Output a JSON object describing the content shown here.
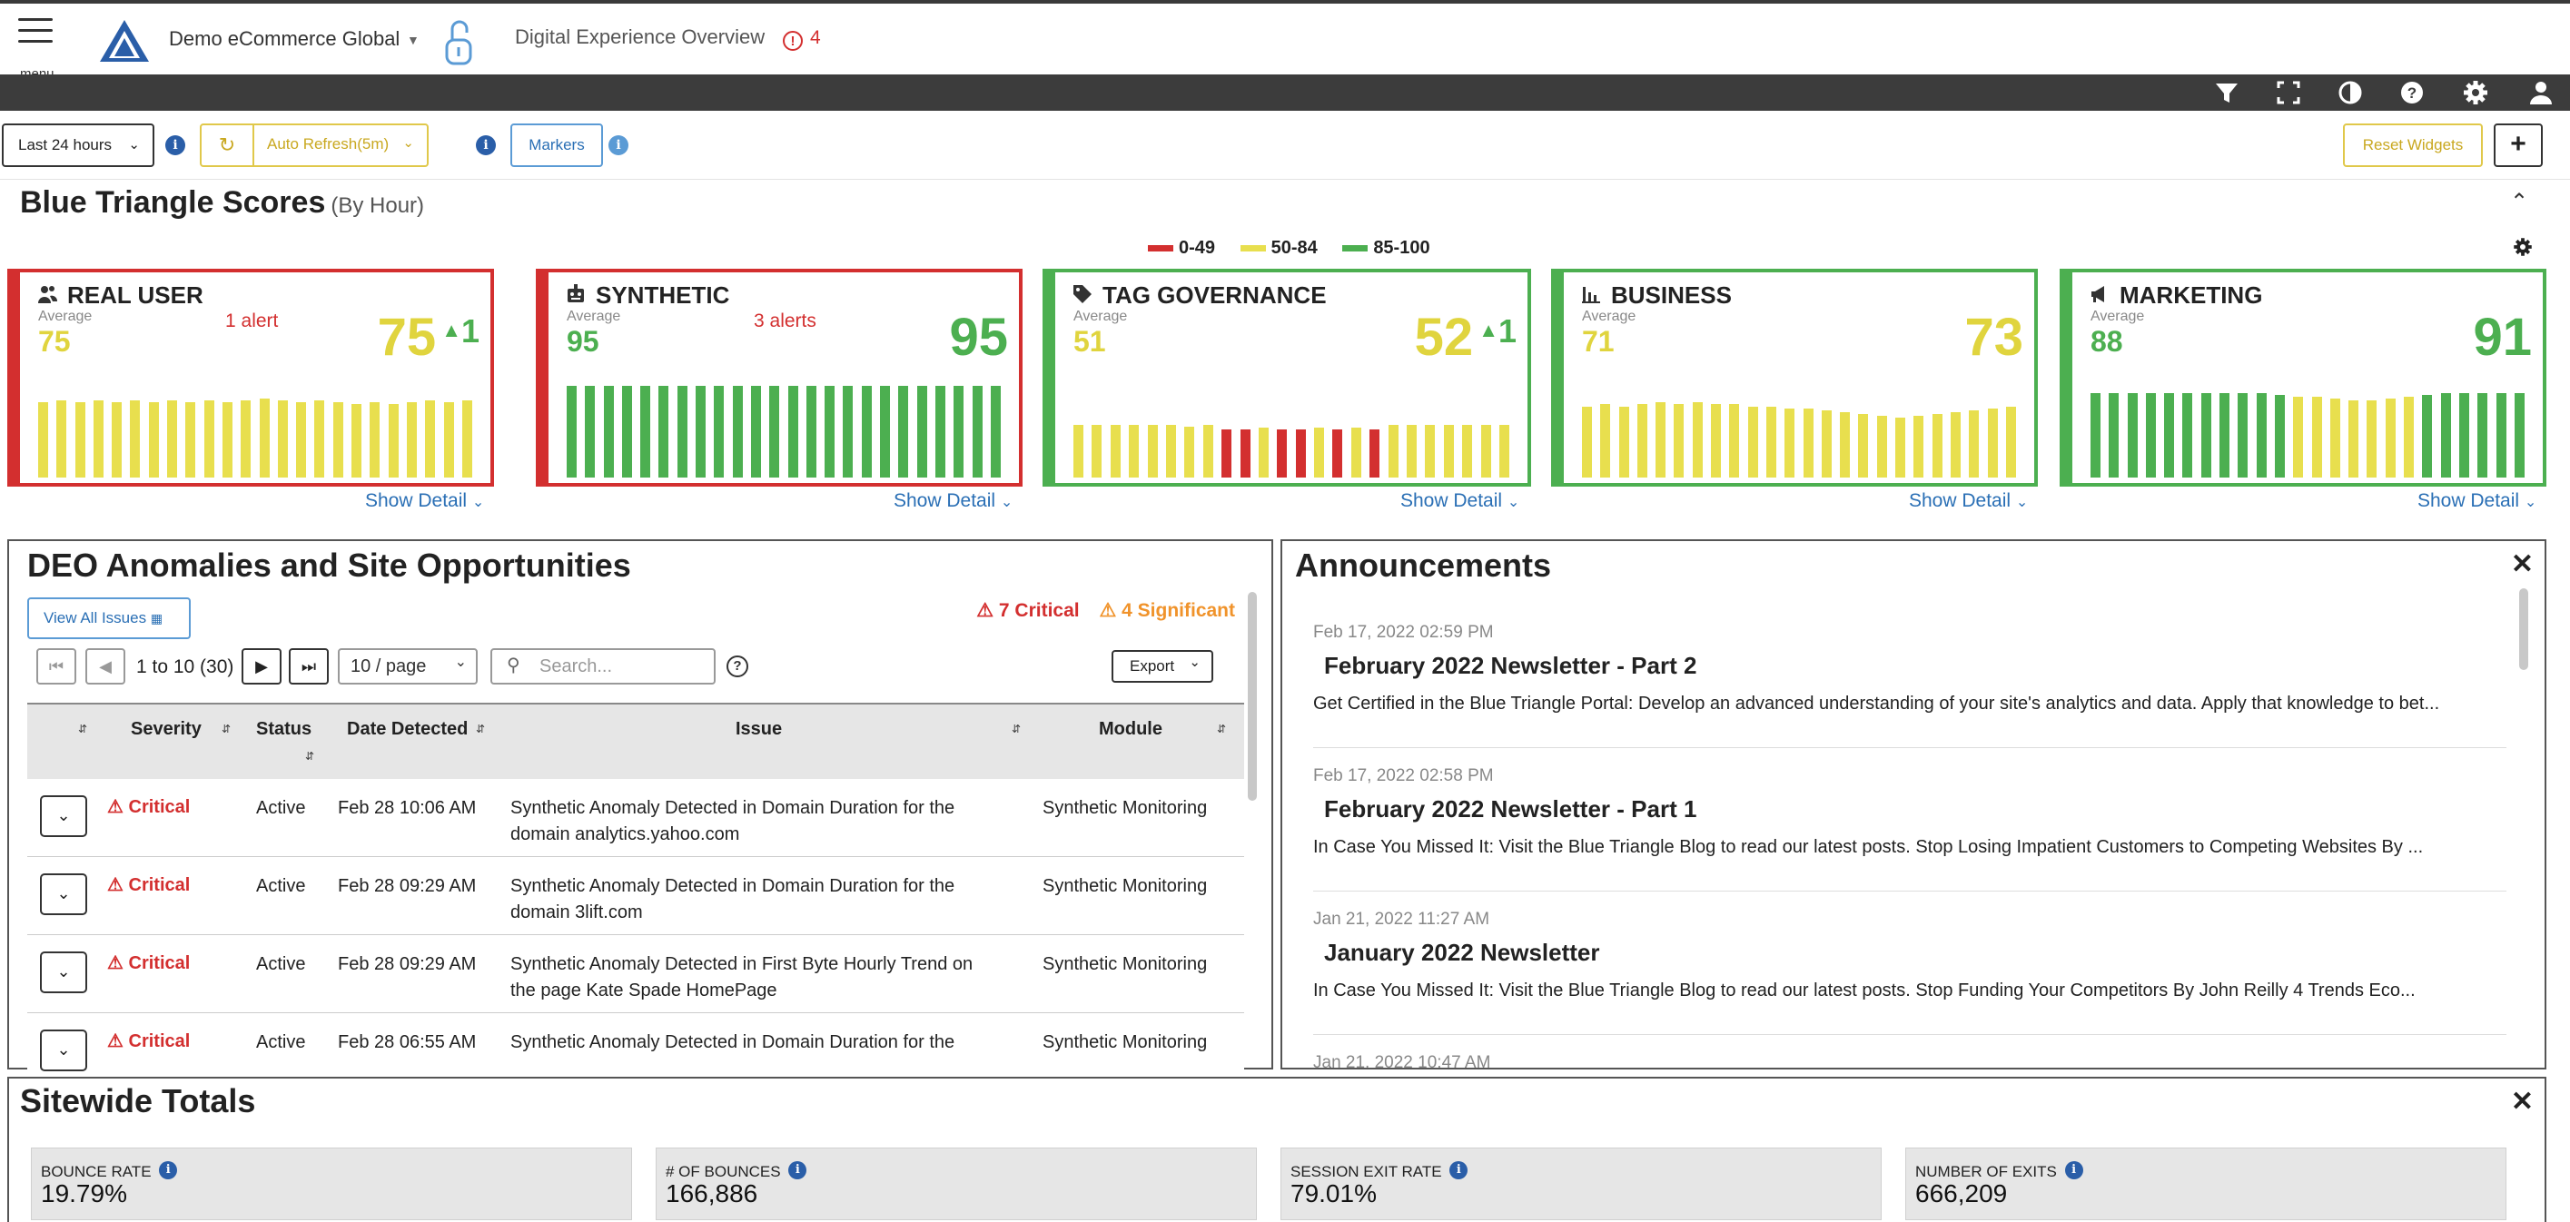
{
  "header": {
    "menu_label": "menu",
    "site_name": "Demo eCommerce Global",
    "page_name": "Digital Experience Overview",
    "alert_count": "4"
  },
  "filters": {
    "time_range": "Last 24 hours",
    "auto_refresh": "Auto Refresh(5m)",
    "markers": "Markers",
    "reset_widgets": "Reset Widgets",
    "add": "+"
  },
  "scores": {
    "title": "Blue Triangle Scores",
    "subtitle": "(By Hour)",
    "legend": [
      {
        "label": "0-49",
        "color": "#d32f2f"
      },
      {
        "label": "50-84",
        "color": "#e8df4e"
      },
      {
        "label": "85-100",
        "color": "#4caf50"
      }
    ],
    "average_label": "Average",
    "show_detail": "Show Detail",
    "cards": [
      {
        "title": "REAL USER",
        "icon": "users-icon",
        "average": "75",
        "alert": "1 alert",
        "score": "75",
        "delta": "1",
        "border": "#d32f2f",
        "avg_color": "#e0d43e",
        "score_color": "#e0d43e",
        "bars": [
          {
            "v": 0.78,
            "c": "#e8df4e"
          },
          {
            "v": 0.8,
            "c": "#e8df4e"
          },
          {
            "v": 0.78,
            "c": "#e8df4e"
          },
          {
            "v": 0.8,
            "c": "#e8df4e"
          },
          {
            "v": 0.78,
            "c": "#e8df4e"
          },
          {
            "v": 0.8,
            "c": "#e8df4e"
          },
          {
            "v": 0.78,
            "c": "#e8df4e"
          },
          {
            "v": 0.8,
            "c": "#e8df4e"
          },
          {
            "v": 0.78,
            "c": "#e8df4e"
          },
          {
            "v": 0.8,
            "c": "#e8df4e"
          },
          {
            "v": 0.78,
            "c": "#e8df4e"
          },
          {
            "v": 0.8,
            "c": "#e8df4e"
          },
          {
            "v": 0.82,
            "c": "#e8df4e"
          },
          {
            "v": 0.8,
            "c": "#e8df4e"
          },
          {
            "v": 0.78,
            "c": "#e8df4e"
          },
          {
            "v": 0.8,
            "c": "#e8df4e"
          },
          {
            "v": 0.78,
            "c": "#e8df4e"
          },
          {
            "v": 0.76,
            "c": "#e8df4e"
          },
          {
            "v": 0.78,
            "c": "#e8df4e"
          },
          {
            "v": 0.76,
            "c": "#e8df4e"
          },
          {
            "v": 0.78,
            "c": "#e8df4e"
          },
          {
            "v": 0.8,
            "c": "#e8df4e"
          },
          {
            "v": 0.78,
            "c": "#e8df4e"
          },
          {
            "v": 0.8,
            "c": "#e8df4e"
          }
        ]
      },
      {
        "title": "SYNTHETIC",
        "icon": "robot-icon",
        "average": "95",
        "alert": "3 alerts",
        "score": "95",
        "delta": "",
        "border": "#d32f2f",
        "avg_color": "#4caf50",
        "score_color": "#4caf50",
        "bars": [
          {
            "v": 0.95,
            "c": "#4caf50"
          },
          {
            "v": 0.95,
            "c": "#4caf50"
          },
          {
            "v": 0.95,
            "c": "#4caf50"
          },
          {
            "v": 0.95,
            "c": "#4caf50"
          },
          {
            "v": 0.95,
            "c": "#4caf50"
          },
          {
            "v": 0.95,
            "c": "#4caf50"
          },
          {
            "v": 0.95,
            "c": "#4caf50"
          },
          {
            "v": 0.95,
            "c": "#4caf50"
          },
          {
            "v": 0.95,
            "c": "#4caf50"
          },
          {
            "v": 0.95,
            "c": "#4caf50"
          },
          {
            "v": 0.95,
            "c": "#4caf50"
          },
          {
            "v": 0.95,
            "c": "#4caf50"
          },
          {
            "v": 0.95,
            "c": "#4caf50"
          },
          {
            "v": 0.95,
            "c": "#4caf50"
          },
          {
            "v": 0.95,
            "c": "#4caf50"
          },
          {
            "v": 0.95,
            "c": "#4caf50"
          },
          {
            "v": 0.95,
            "c": "#4caf50"
          },
          {
            "v": 0.95,
            "c": "#4caf50"
          },
          {
            "v": 0.95,
            "c": "#4caf50"
          },
          {
            "v": 0.95,
            "c": "#4caf50"
          },
          {
            "v": 0.95,
            "c": "#4caf50"
          },
          {
            "v": 0.95,
            "c": "#4caf50"
          },
          {
            "v": 0.95,
            "c": "#4caf50"
          },
          {
            "v": 0.95,
            "c": "#4caf50"
          }
        ]
      },
      {
        "title": "TAG GOVERNANCE",
        "icon": "tag-icon",
        "average": "51",
        "alert": "",
        "score": "52",
        "delta": "1",
        "border": "#4caf50",
        "avg_color": "#e0d43e",
        "score_color": "#e0d43e",
        "bars": [
          {
            "v": 0.55,
            "c": "#e8df4e"
          },
          {
            "v": 0.55,
            "c": "#e8df4e"
          },
          {
            "v": 0.55,
            "c": "#e8df4e"
          },
          {
            "v": 0.55,
            "c": "#e8df4e"
          },
          {
            "v": 0.55,
            "c": "#e8df4e"
          },
          {
            "v": 0.55,
            "c": "#e8df4e"
          },
          {
            "v": 0.53,
            "c": "#e8df4e"
          },
          {
            "v": 0.55,
            "c": "#e8df4e"
          },
          {
            "v": 0.5,
            "c": "#d32f2f"
          },
          {
            "v": 0.5,
            "c": "#d32f2f"
          },
          {
            "v": 0.52,
            "c": "#e8df4e"
          },
          {
            "v": 0.5,
            "c": "#d32f2f"
          },
          {
            "v": 0.5,
            "c": "#d32f2f"
          },
          {
            "v": 0.52,
            "c": "#e8df4e"
          },
          {
            "v": 0.5,
            "c": "#d32f2f"
          },
          {
            "v": 0.52,
            "c": "#e8df4e"
          },
          {
            "v": 0.5,
            "c": "#d32f2f"
          },
          {
            "v": 0.55,
            "c": "#e8df4e"
          },
          {
            "v": 0.55,
            "c": "#e8df4e"
          },
          {
            "v": 0.55,
            "c": "#e8df4e"
          },
          {
            "v": 0.55,
            "c": "#e8df4e"
          },
          {
            "v": 0.55,
            "c": "#e8df4e"
          },
          {
            "v": 0.55,
            "c": "#e8df4e"
          },
          {
            "v": 0.55,
            "c": "#e8df4e"
          }
        ]
      },
      {
        "title": "BUSINESS",
        "icon": "bar-chart-icon",
        "average": "71",
        "alert": "",
        "score": "73",
        "delta": "",
        "border": "#4caf50",
        "avg_color": "#e0d43e",
        "score_color": "#e0d43e",
        "bars": [
          {
            "v": 0.74,
            "c": "#e8df4e"
          },
          {
            "v": 0.76,
            "c": "#e8df4e"
          },
          {
            "v": 0.74,
            "c": "#e8df4e"
          },
          {
            "v": 0.76,
            "c": "#e8df4e"
          },
          {
            "v": 0.78,
            "c": "#e8df4e"
          },
          {
            "v": 0.76,
            "c": "#e8df4e"
          },
          {
            "v": 0.78,
            "c": "#e8df4e"
          },
          {
            "v": 0.76,
            "c": "#e8df4e"
          },
          {
            "v": 0.76,
            "c": "#e8df4e"
          },
          {
            "v": 0.74,
            "c": "#e8df4e"
          },
          {
            "v": 0.74,
            "c": "#e8df4e"
          },
          {
            "v": 0.72,
            "c": "#e8df4e"
          },
          {
            "v": 0.72,
            "c": "#e8df4e"
          },
          {
            "v": 0.7,
            "c": "#e8df4e"
          },
          {
            "v": 0.68,
            "c": "#e8df4e"
          },
          {
            "v": 0.66,
            "c": "#e8df4e"
          },
          {
            "v": 0.64,
            "c": "#e8df4e"
          },
          {
            "v": 0.62,
            "c": "#e8df4e"
          },
          {
            "v": 0.64,
            "c": "#e8df4e"
          },
          {
            "v": 0.66,
            "c": "#e8df4e"
          },
          {
            "v": 0.68,
            "c": "#e8df4e"
          },
          {
            "v": 0.7,
            "c": "#e8df4e"
          },
          {
            "v": 0.72,
            "c": "#e8df4e"
          },
          {
            "v": 0.74,
            "c": "#e8df4e"
          }
        ]
      },
      {
        "title": "MARKETING",
        "icon": "megaphone-icon",
        "average": "88",
        "alert": "",
        "score": "91",
        "delta": "",
        "border": "#4caf50",
        "avg_color": "#4caf50",
        "score_color": "#4caf50",
        "bars": [
          {
            "v": 0.88,
            "c": "#4caf50"
          },
          {
            "v": 0.88,
            "c": "#4caf50"
          },
          {
            "v": 0.88,
            "c": "#4caf50"
          },
          {
            "v": 0.88,
            "c": "#4caf50"
          },
          {
            "v": 0.88,
            "c": "#4caf50"
          },
          {
            "v": 0.88,
            "c": "#4caf50"
          },
          {
            "v": 0.88,
            "c": "#4caf50"
          },
          {
            "v": 0.88,
            "c": "#4caf50"
          },
          {
            "v": 0.88,
            "c": "#4caf50"
          },
          {
            "v": 0.88,
            "c": "#4caf50"
          },
          {
            "v": 0.86,
            "c": "#4caf50"
          },
          {
            "v": 0.84,
            "c": "#e8df4e"
          },
          {
            "v": 0.84,
            "c": "#e8df4e"
          },
          {
            "v": 0.82,
            "c": "#e8df4e"
          },
          {
            "v": 0.8,
            "c": "#e8df4e"
          },
          {
            "v": 0.8,
            "c": "#e8df4e"
          },
          {
            "v": 0.82,
            "c": "#e8df4e"
          },
          {
            "v": 0.84,
            "c": "#e8df4e"
          },
          {
            "v": 0.86,
            "c": "#4caf50"
          },
          {
            "v": 0.88,
            "c": "#4caf50"
          },
          {
            "v": 0.88,
            "c": "#4caf50"
          },
          {
            "v": 0.88,
            "c": "#4caf50"
          },
          {
            "v": 0.88,
            "c": "#4caf50"
          },
          {
            "v": 0.88,
            "c": "#4caf50"
          }
        ]
      }
    ]
  },
  "anomalies": {
    "title": "DEO Anomalies and Site Opportunities",
    "view_all": "View All Issues",
    "critical_count": "7 Critical",
    "significant_count": "4 Significant",
    "page_range": "1 to 10 (30)",
    "per_page": "10 / page",
    "search_placeholder": "Search...",
    "export": "Export",
    "columns": {
      "severity": "Severity",
      "status": "Status",
      "date": "Date Detected",
      "issue": "Issue",
      "module": "Module"
    },
    "rows": [
      {
        "severity": "Critical",
        "status": "Active",
        "date": "Feb 28 10:06 AM",
        "issue": "Synthetic Anomaly Detected in Domain Duration for the domain analytics.yahoo.com",
        "module": "Synthetic Monitoring"
      },
      {
        "severity": "Critical",
        "status": "Active",
        "date": "Feb 28 09:29 AM",
        "issue": "Synthetic Anomaly Detected in Domain Duration for the domain 3lift.com",
        "module": "Synthetic Monitoring"
      },
      {
        "severity": "Critical",
        "status": "Active",
        "date": "Feb 28 09:29 AM",
        "issue": "Synthetic Anomaly Detected in First Byte Hourly Trend on the page Kate Spade HomePage",
        "module": "Synthetic Monitoring"
      },
      {
        "severity": "Critical",
        "status": "Active",
        "date": "Feb 28 06:55 AM",
        "issue": "Synthetic Anomaly Detected in Domain Duration for the",
        "module": "Synthetic Monitoring"
      }
    ]
  },
  "announcements": {
    "title": "Announcements",
    "items": [
      {
        "date": "Feb 17, 2022 02:59 PM",
        "title": "February 2022 Newsletter - Part 2",
        "body": "Get Certified in the Blue Triangle Portal: Develop an advanced understanding of your site's analytics and data. Apply that knowledge to bet..."
      },
      {
        "date": "Feb 17, 2022 02:58 PM",
        "title": "February 2022 Newsletter - Part 1",
        "body": "In Case You Missed It: Visit the Blue Triangle Blog to read our latest posts.   Stop Losing Impatient Customers to Competing Websites By ..."
      },
      {
        "date": "Jan 21, 2022 11:27 AM",
        "title": "January 2022 Newsletter",
        "body": "In Case You Missed It: Visit the Blue Triangle Blog to read our latest posts.   Stop Funding Your Competitors By John Reilly   4 Trends Eco..."
      },
      {
        "date": "Jan 21, 2022 10:47 AM",
        "title": "",
        "body": ""
      }
    ]
  },
  "sitewide": {
    "title": "Sitewide Totals",
    "metrics": [
      {
        "label": "BOUNCE RATE",
        "value": "19.79%"
      },
      {
        "label": "# OF BOUNCES",
        "value": "166,886"
      },
      {
        "label": "SESSION EXIT RATE",
        "value": "79.01%"
      },
      {
        "label": "NUMBER OF EXITS",
        "value": "666,209"
      }
    ]
  }
}
